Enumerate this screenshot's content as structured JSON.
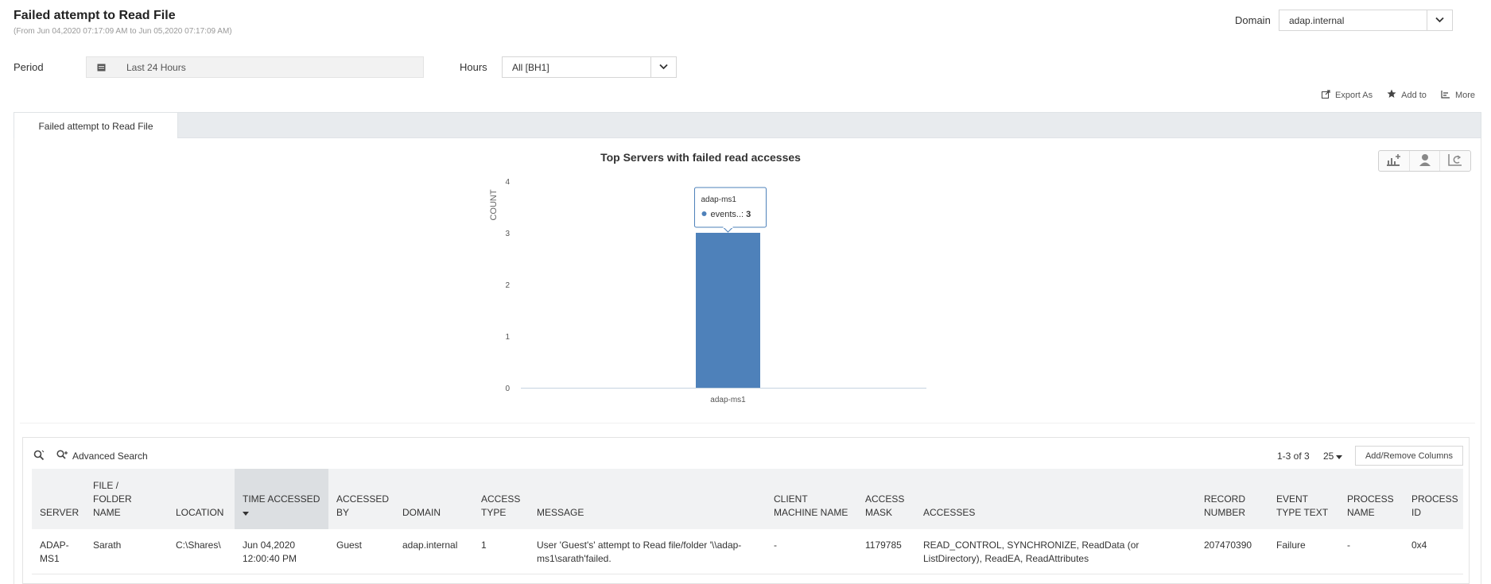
{
  "header": {
    "title": "Failed attempt to Read File",
    "subtitle": "(From Jun 04,2020 07:17:09 AM to Jun 05,2020 07:17:09 AM)",
    "domain_label": "Domain",
    "domain_value": "adap.internal"
  },
  "filters": {
    "period_label": "Period",
    "period_value": "Last 24 Hours",
    "hours_label": "Hours",
    "hours_value": "All [BH1]"
  },
  "actions": {
    "export_label": "Export As",
    "add_label": "Add to",
    "more_label": "More"
  },
  "tabs": [
    {
      "label": "Failed attempt to Read File"
    }
  ],
  "chart_data": {
    "type": "bar",
    "title": "Top Servers with failed read accesses",
    "categories": [
      "adap-ms1"
    ],
    "series": [
      {
        "name": "events",
        "values": [
          3
        ]
      }
    ],
    "xlabel": "",
    "ylabel": "COUNT",
    "ylim": [
      0,
      4
    ],
    "yticks": [
      0,
      1,
      2,
      3,
      4
    ],
    "tooltip": {
      "header": "adap-ms1",
      "label": "events..:",
      "value": "3"
    },
    "color": "#4e81ba"
  },
  "grid": {
    "advanced_search_label": "Advanced Search",
    "pager_text": "1-3 of 3",
    "page_size": "25",
    "add_remove_label": "Add/Remove Columns",
    "columns": [
      "SERVER",
      "FILE / FOLDER NAME",
      "LOCATION",
      "TIME ACCESSED",
      "ACCESSED BY",
      "DOMAIN",
      "ACCESS TYPE",
      "MESSAGE",
      "CLIENT MACHINE NAME",
      "ACCESS MASK",
      "ACCESSES",
      "RECORD NUMBER",
      "EVENT TYPE TEXT",
      "PROCESS NAME",
      "PROCESS ID"
    ],
    "rows": [
      {
        "server": "ADAP-MS1",
        "file": "Sarath",
        "location": "C:\\Shares\\",
        "time": "Jun 04,2020 12:00:40 PM",
        "accessed_by": "Guest",
        "domain": "adap.internal",
        "access_type": "1",
        "message": "User 'Guest's' attempt to Read file/folder '\\\\adap-ms1\\sarath'failed.",
        "client": "-",
        "mask": "1179785",
        "accesses": "READ_CONTROL, SYNCHRONIZE, ReadData (or ListDirectory), ReadEA, ReadAttributes",
        "record": "207470390",
        "event_type": "Failure",
        "process_name": "-",
        "process_id": "0x4"
      }
    ]
  }
}
